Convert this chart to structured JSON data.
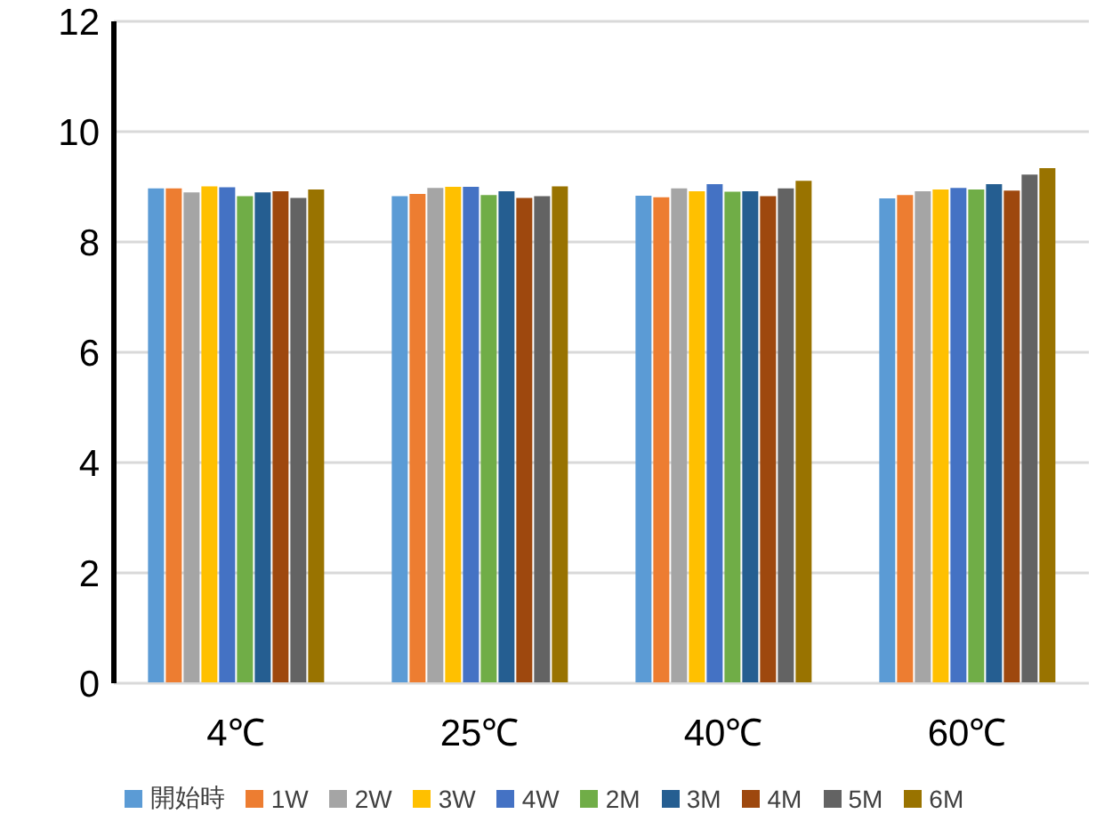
{
  "chart_data": {
    "type": "bar",
    "categories": [
      "4℃",
      "25℃",
      "40℃",
      "60℃"
    ],
    "series": [
      {
        "name": "開始時",
        "color": "#5b9bd5",
        "values": [
          8.97,
          8.83,
          8.84,
          8.79
        ]
      },
      {
        "name": "1W",
        "color": "#ed7d31",
        "values": [
          8.97,
          8.87,
          8.81,
          8.85
        ]
      },
      {
        "name": "2W",
        "color": "#a5a5a5",
        "values": [
          8.9,
          8.98,
          8.97,
          8.92
        ]
      },
      {
        "name": "3W",
        "color": "#ffc000",
        "values": [
          9.01,
          9.0,
          8.92,
          8.95
        ]
      },
      {
        "name": "4W",
        "color": "#4472c4",
        "values": [
          8.99,
          9.0,
          9.05,
          8.98
        ]
      },
      {
        "name": "2M",
        "color": "#70ad47",
        "values": [
          8.83,
          8.85,
          8.91,
          8.95
        ]
      },
      {
        "name": "3M",
        "color": "#255e91",
        "values": [
          8.9,
          8.92,
          8.92,
          9.05
        ]
      },
      {
        "name": "4M",
        "color": "#9e480e",
        "values": [
          8.92,
          8.8,
          8.83,
          8.93
        ]
      },
      {
        "name": "5M",
        "color": "#636363",
        "values": [
          8.8,
          8.83,
          8.97,
          9.22
        ]
      },
      {
        "name": "6M",
        "color": "#997300",
        "values": [
          8.95,
          9.01,
          9.11,
          9.34
        ]
      }
    ],
    "ylim": [
      0,
      12
    ],
    "yticks": [
      0,
      2,
      4,
      6,
      8,
      10,
      12
    ],
    "grid": "y",
    "legend": "bottom"
  }
}
